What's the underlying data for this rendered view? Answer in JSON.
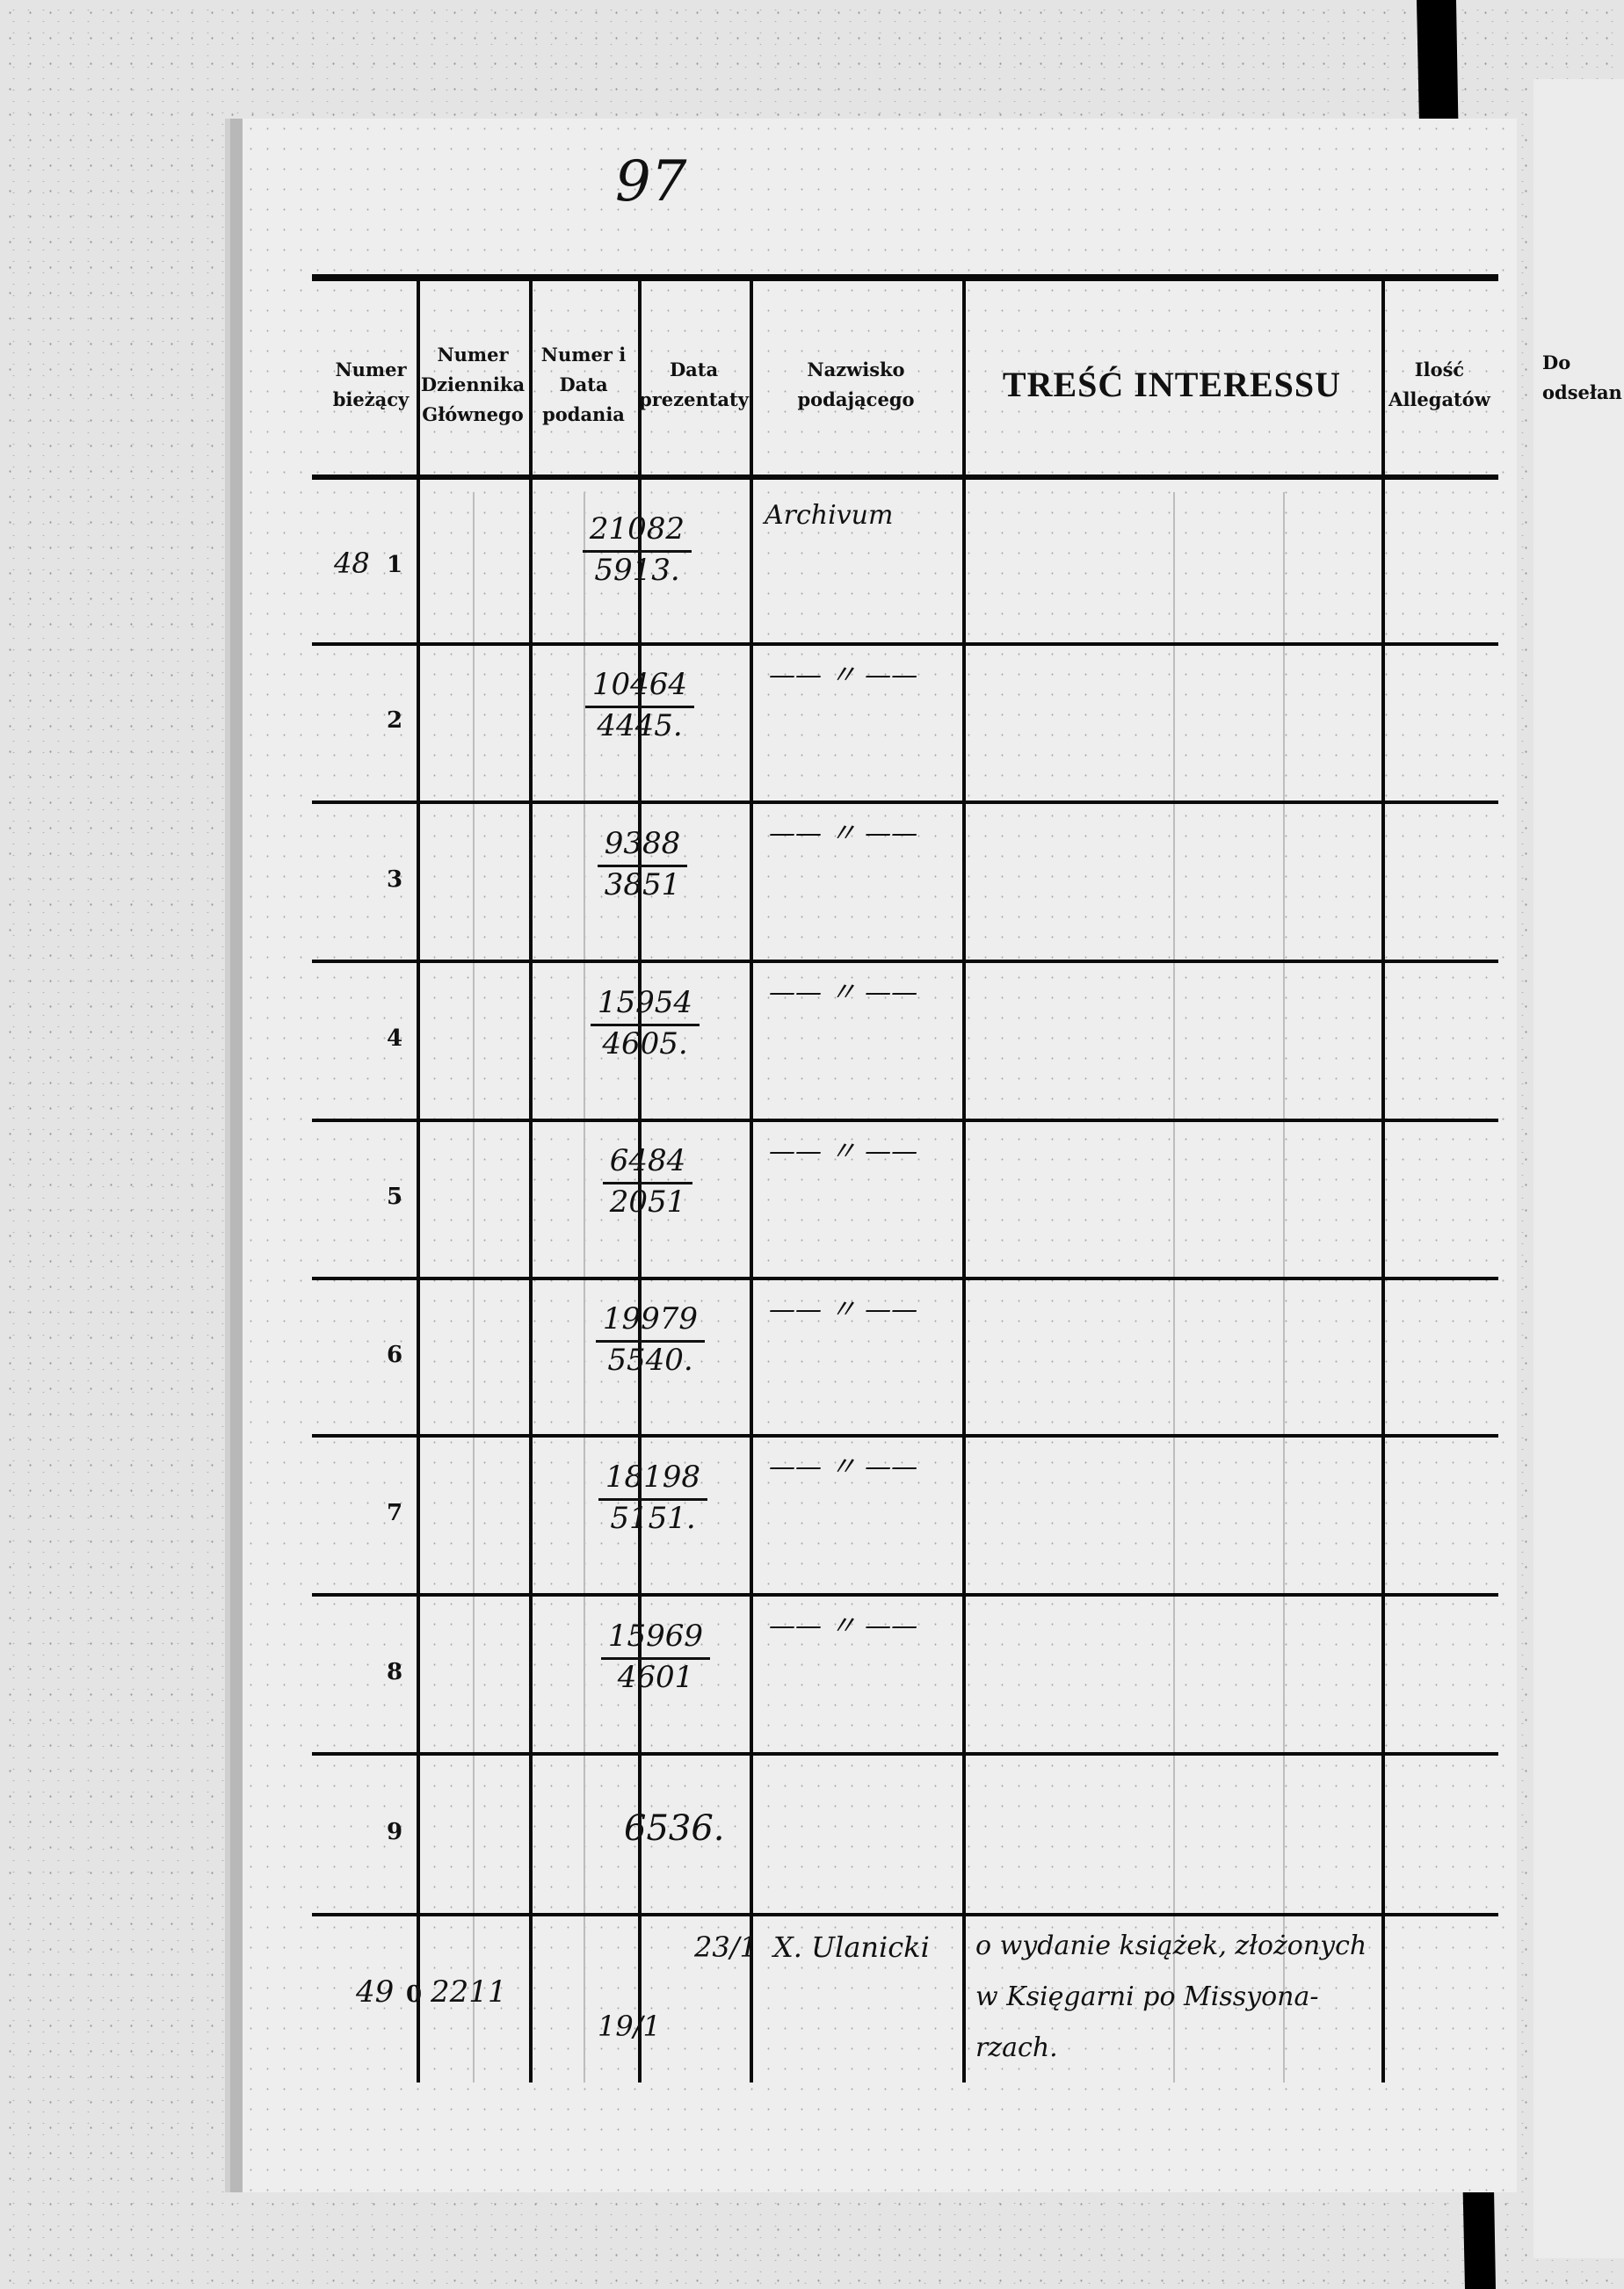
{
  "page_number": "97",
  "header": {
    "columns": [
      {
        "label": "Numer bieżący"
      },
      {
        "label": "Numer Dziennika Głównego"
      },
      {
        "label": "Numer i Data podania"
      },
      {
        "label": "Data prezentaty"
      },
      {
        "label": "Nazwisko podającego"
      },
      {
        "label": "TREŚĆ INTERESSU"
      },
      {
        "label": "Ilość Allegatów"
      }
    ],
    "next_page_column": {
      "line1": "Do",
      "line2": "odsełan"
    }
  },
  "rows": [
    {
      "prefix": "48",
      "num": "1",
      "fraction_top": "21082",
      "fraction_bottom": "5913.",
      "name": "Archivum"
    },
    {
      "num": "2",
      "fraction_top": "10464",
      "fraction_bottom": "4445.",
      "name": "—— 〃 ——"
    },
    {
      "num": "3",
      "fraction_top": "9388",
      "fraction_bottom": "3851",
      "name": "—— 〃 ——"
    },
    {
      "num": "4",
      "fraction_top": "15954",
      "fraction_bottom": "4605.",
      "name": "—— 〃 ——"
    },
    {
      "num": "5",
      "fraction_top": "6484",
      "fraction_bottom": "2051",
      "name": "—— 〃 ——"
    },
    {
      "num": "6",
      "fraction_top": "19979",
      "fraction_bottom": "5540.",
      "name": "—— 〃 ——"
    },
    {
      "num": "7",
      "fraction_top": "18198",
      "fraction_bottom": "5151.",
      "name": "—— 〃 ——"
    },
    {
      "num": "8",
      "fraction_top": "15969",
      "fraction_bottom": "4601",
      "name": "—— 〃 ——"
    },
    {
      "num": "9",
      "single": "6536."
    }
  ],
  "last_row": {
    "prefix": "49",
    "num": "0",
    "journal": "2211",
    "date_submitted": "19/1",
    "date_presented": "23/1",
    "name": "X. Ulanicki",
    "content_lines": [
      "o wydanie książek, złożonych",
      "w Księgarni po Missyona-",
      "rzach."
    ]
  }
}
